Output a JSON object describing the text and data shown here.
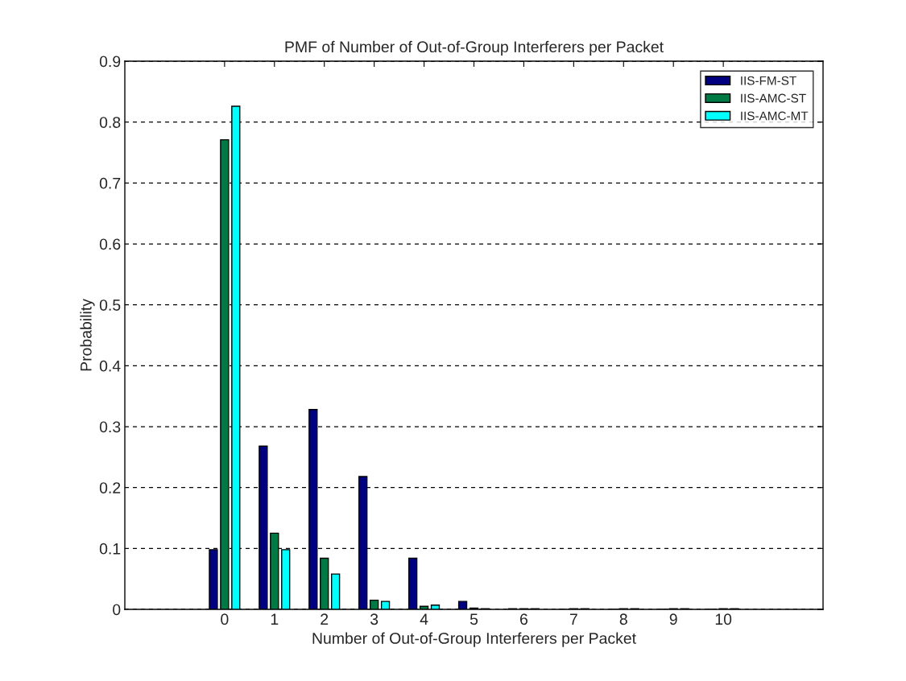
{
  "chart_data": {
    "type": "bar",
    "title": "PMF of Number of Out-of-Group Interferers per Packet",
    "xlabel": "Number of Out-of-Group Interferers per Packet",
    "ylabel": "Probability",
    "x": [
      0,
      1,
      2,
      3,
      4,
      5,
      6,
      7,
      8,
      9,
      10
    ],
    "series": [
      {
        "name": "IIS-FM-ST",
        "color": "#000080",
        "values": [
          0.098,
          0.268,
          0.328,
          0.218,
          0.084,
          0.013,
          0.001,
          0,
          0,
          0,
          0
        ]
      },
      {
        "name": "IIS-AMC-ST",
        "color": "#007a45",
        "values": [
          0.771,
          0.125,
          0.084,
          0.015,
          0.005,
          0.002,
          0.001,
          0.001,
          0.001,
          0.001,
          0.001
        ]
      },
      {
        "name": "IIS-AMC-MT",
        "color": "#00ffff",
        "values": [
          0.826,
          0.098,
          0.058,
          0.013,
          0.007,
          0.001,
          0.001,
          0.001,
          0.001,
          0.001,
          0.001
        ]
      }
    ],
    "xlim": [
      -2,
      12
    ],
    "xticks": [
      0,
      1,
      2,
      3,
      4,
      5,
      6,
      7,
      8,
      9,
      10
    ],
    "ylim": [
      0,
      0.9
    ],
    "yticks": [
      0,
      0.1,
      0.2,
      0.3,
      0.4,
      0.5,
      0.6,
      0.7,
      0.8,
      0.9
    ],
    "grid": "y",
    "legend": "top right"
  }
}
